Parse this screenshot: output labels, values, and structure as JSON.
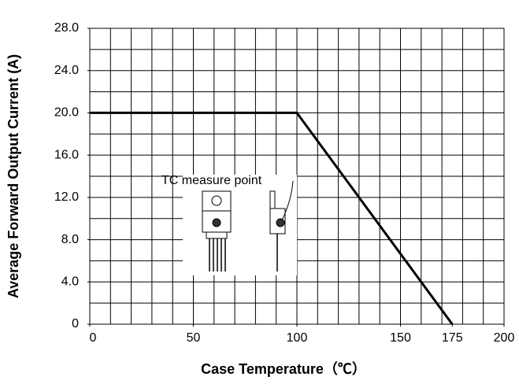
{
  "chart_data": {
    "type": "line",
    "x_label": "Case Temperature（℃）",
    "y_label": "Average Forward Output Current (A)",
    "annotation": "TC measure point",
    "xlim": [
      0,
      200
    ],
    "ylim": [
      0,
      28
    ],
    "xticks": [
      0,
      50,
      100,
      150,
      175,
      200
    ],
    "yticks": [
      0,
      {
        "value": 4,
        "label": "4.0"
      },
      {
        "value": 8,
        "label": "8.0"
      },
      {
        "value": 12,
        "label": "12.0"
      },
      {
        "value": 16,
        "label": "16.0"
      },
      {
        "value": 20,
        "label": "20.0"
      },
      {
        "value": 24,
        "label": "24.0"
      },
      {
        "value": 28,
        "label": "28.0"
      }
    ],
    "x_grid": [
      0,
      10,
      20,
      30,
      40,
      50,
      60,
      70,
      80,
      90,
      100,
      110,
      120,
      130,
      140,
      150,
      160,
      170,
      180,
      190,
      200
    ],
    "y_grid": [
      0,
      2,
      4,
      6,
      8,
      10,
      12,
      14,
      16,
      18,
      20,
      22,
      24,
      26,
      28
    ],
    "grid": true,
    "series": [
      {
        "color": "#000000",
        "x": [
          0,
          100,
          175
        ],
        "values": [
          20,
          20,
          0
        ]
      }
    ]
  }
}
